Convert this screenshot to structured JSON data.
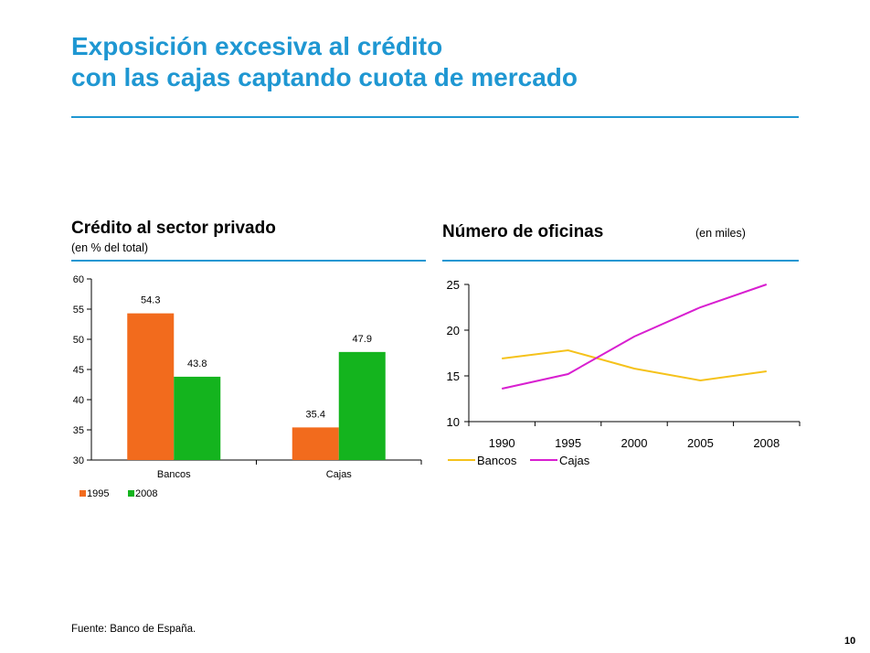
{
  "slide": {
    "title_line1": "Exposición excesiva al crédito",
    "title_line2": "con las cajas captando cuota de mercado",
    "source": "Fuente: Banco de España.",
    "page_number": "10",
    "accent_color": "#1f97d2"
  },
  "left_panel": {
    "title": "Crédito al sector privado",
    "subtitle": "(en % del total)"
  },
  "right_panel": {
    "title": "Número de oficinas",
    "subtitle": "(en miles)"
  },
  "chart_data": [
    {
      "type": "bar",
      "categories": [
        "Bancos",
        "Cajas"
      ],
      "series": [
        {
          "name": "1995",
          "values": [
            54.3,
            35.4
          ],
          "color": "#f26b1d"
        },
        {
          "name": "2008",
          "values": [
            43.8,
            47.9
          ],
          "color": "#14b41e"
        }
      ],
      "data_labels": [
        "54.3",
        "35.4",
        "43.8",
        "47.9"
      ],
      "yticks": [
        "60",
        "55",
        "50",
        "45",
        "40",
        "35",
        "30"
      ],
      "ylim": [
        30,
        60
      ],
      "grid": false,
      "legend": "bottom-left"
    },
    {
      "type": "line",
      "categories": [
        "1990",
        "1995",
        "2000",
        "2005",
        "2008"
      ],
      "series": [
        {
          "name": "Bancos",
          "values": [
            16.9,
            17.8,
            15.8,
            14.5,
            15.5
          ],
          "color": "#f5c21b"
        },
        {
          "name": "Cajas",
          "values": [
            13.6,
            15.2,
            19.3,
            22.5,
            25.0
          ],
          "color": "#d81fd0"
        }
      ],
      "yticks": [
        "25",
        "20",
        "15",
        "10"
      ],
      "ylim": [
        10,
        25
      ],
      "grid": false,
      "legend": "bottom-left"
    }
  ]
}
